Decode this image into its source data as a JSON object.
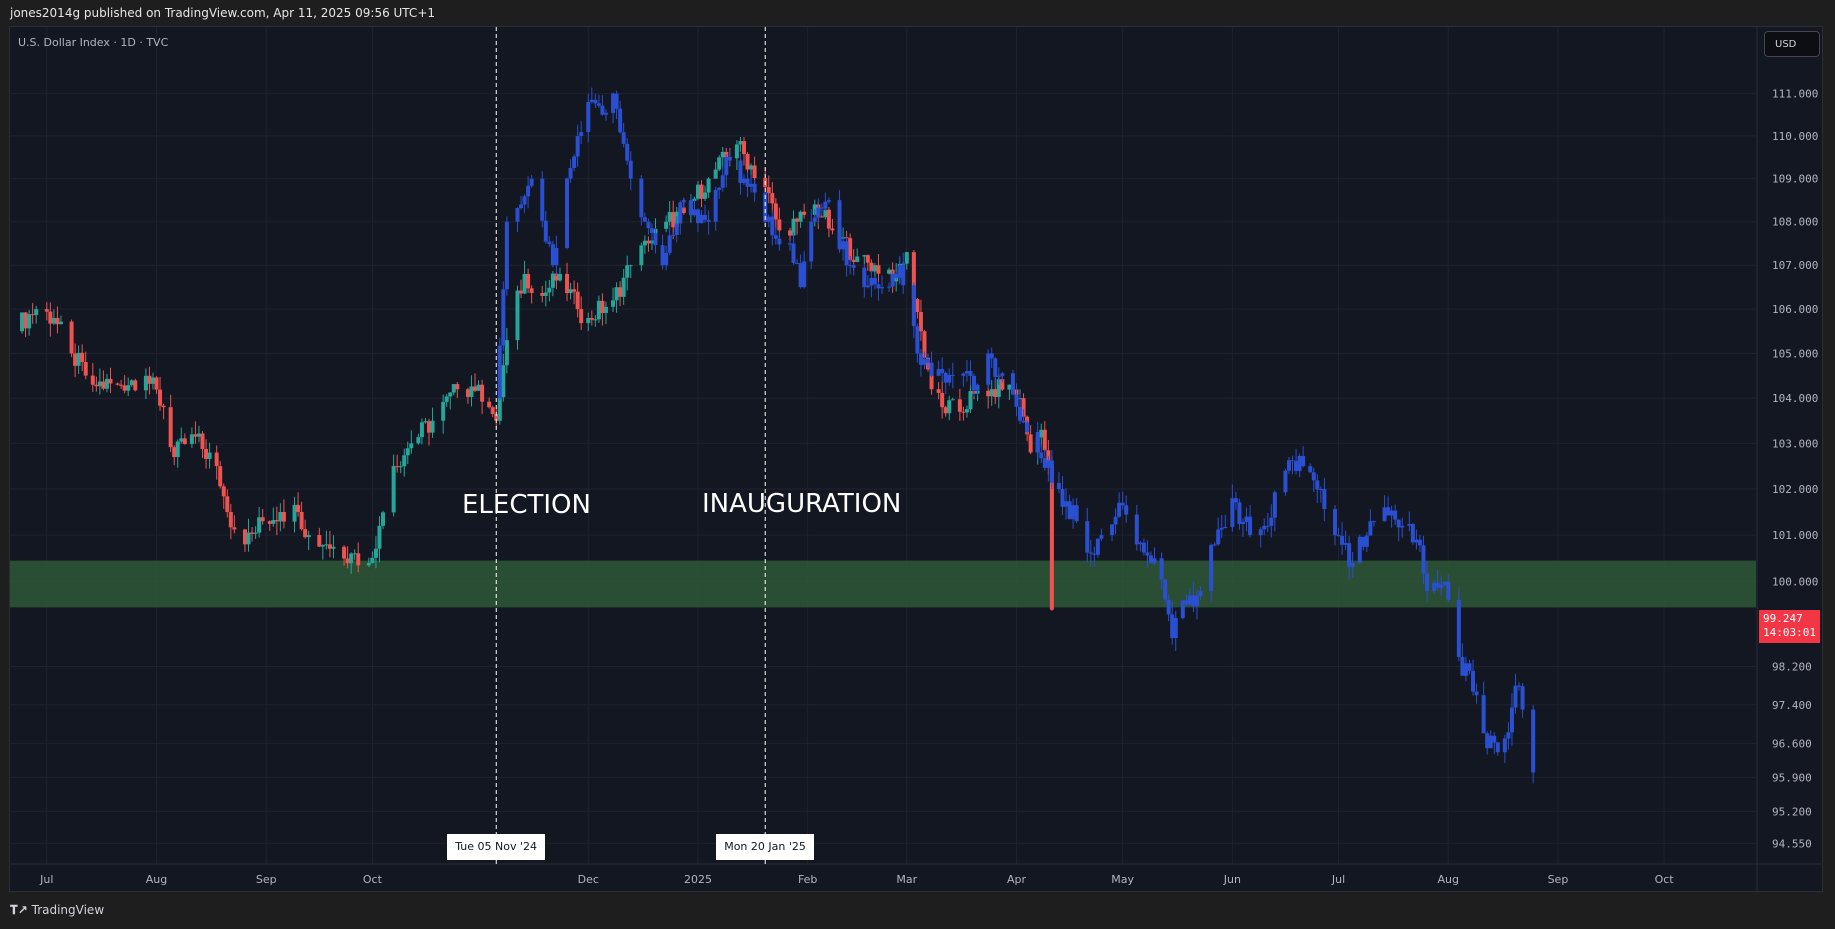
{
  "header": {
    "published": "jones2014g published on TradingView.com, Apr 11, 2025 09:56 UTC+1"
  },
  "legend": {
    "symbol": "U.S. Dollar Index · 1D · TVC"
  },
  "currency_button": "USD",
  "footer": {
    "brand": "TradingView",
    "logo_icon": "tradingview-logo-icon"
  },
  "chart_data": {
    "type": "candlestick",
    "y_scale": "log",
    "ylim": [
      94.2,
      111.5
    ],
    "y_ticks": [
      "111.000",
      "110.000",
      "109.000",
      "108.000",
      "107.000",
      "106.000",
      "105.000",
      "104.000",
      "103.000",
      "102.000",
      "101.000",
      "100.000",
      "98.200",
      "97.400",
      "96.600",
      "95.900",
      "95.200",
      "94.550"
    ],
    "x_ticks": [
      {
        "label": "Jul",
        "date": "2024-07-01"
      },
      {
        "label": "Aug",
        "date": "2024-08-01"
      },
      {
        "label": "Sep",
        "date": "2024-09-01"
      },
      {
        "label": "Oct",
        "date": "2024-10-01"
      },
      {
        "label": "Dec",
        "date": "2024-12-01"
      },
      {
        "label": "2025",
        "date": "2025-01-01"
      },
      {
        "label": "Feb",
        "date": "2025-02-01"
      },
      {
        "label": "Mar",
        "date": "2025-03-01"
      },
      {
        "label": "Apr",
        "date": "2025-04-01"
      },
      {
        "label": "May",
        "date": "2025-05-01"
      },
      {
        "label": "Jun",
        "date": "2025-06-01"
      },
      {
        "label": "Jul",
        "date": "2025-07-01"
      },
      {
        "label": "Aug",
        "date": "2025-08-01"
      },
      {
        "label": "Sep",
        "date": "2025-09-01"
      },
      {
        "label": "Oct",
        "date": "2025-10-01"
      }
    ],
    "grid": true,
    "colors": {
      "up": "#26a69a",
      "down": "#ef5350",
      "projection": "#2a4fd1",
      "zone": "#2e5436",
      "background": "#131722",
      "last_price": "#f23645"
    },
    "series": [
      {
        "kind": "candles",
        "points": [
          [
            "2024-06-21",
            105.5
          ],
          [
            "2024-06-28",
            106
          ],
          [
            "2024-07-03",
            105.8
          ],
          [
            "2024-07-08",
            105
          ],
          [
            "2024-07-14",
            104.3
          ],
          [
            "2024-07-21",
            104.3
          ],
          [
            "2024-07-29",
            104.5
          ],
          [
            "2024-08-03",
            103.8
          ],
          [
            "2024-08-06",
            102.7
          ],
          [
            "2024-08-11",
            103.2
          ],
          [
            "2024-08-18",
            102.5
          ],
          [
            "2024-08-21",
            101.5
          ],
          [
            "2024-08-26",
            100.8
          ],
          [
            "2024-08-31",
            101.3
          ],
          [
            "2024-09-05",
            101.5
          ],
          [
            "2024-09-10",
            101.5
          ],
          [
            "2024-09-13",
            101
          ],
          [
            "2024-09-18",
            100.8
          ],
          [
            "2024-09-25",
            100.6
          ],
          [
            "2024-09-30",
            100.4
          ],
          [
            "2024-10-03",
            101.2
          ],
          [
            "2024-10-07",
            102.5
          ],
          [
            "2024-10-12",
            103
          ],
          [
            "2024-10-18",
            103.5
          ],
          [
            "2024-10-25",
            104.2
          ],
          [
            "2024-10-31",
            104.3
          ],
          [
            "2024-11-03",
            103.8
          ],
          [
            "2024-11-05",
            103.5
          ],
          [
            "2024-11-08",
            105.3
          ],
          [
            "2024-11-13",
            106.8
          ],
          [
            "2024-11-18",
            106.3
          ],
          [
            "2024-11-23",
            106.8
          ],
          [
            "2024-11-28",
            106
          ],
          [
            "2024-12-01",
            105.8
          ],
          [
            "2024-12-08",
            106.2
          ],
          [
            "2024-12-13",
            107
          ],
          [
            "2024-12-18",
            107.5
          ],
          [
            "2024-12-23",
            108
          ],
          [
            "2024-12-28",
            108.2
          ],
          [
            "2025-01-04",
            109
          ],
          [
            "2025-01-09",
            109.5
          ],
          [
            "2025-01-12",
            109.8
          ],
          [
            "2025-01-20",
            108.8
          ],
          [
            "2025-01-24",
            107.8
          ],
          [
            "2025-01-29",
            108
          ],
          [
            "2025-02-03",
            108.4
          ],
          [
            "2025-02-08",
            107.8
          ],
          [
            "2025-02-15",
            107.2
          ],
          [
            "2025-02-20",
            107
          ],
          [
            "2025-02-26",
            106.8
          ],
          [
            "2025-03-01",
            107.3
          ],
          [
            "2025-03-05",
            105.5
          ],
          [
            "2025-03-08",
            104.2
          ],
          [
            "2025-03-11",
            103.8
          ],
          [
            "2025-03-16",
            103.7
          ],
          [
            "2025-03-20",
            104.1
          ],
          [
            "2025-03-25",
            104.2
          ],
          [
            "2025-03-30",
            104.3
          ],
          [
            "2025-04-02",
            104
          ],
          [
            "2025-04-05",
            102.8
          ],
          [
            "2025-04-08",
            103.3
          ],
          [
            "2025-04-10",
            102.5
          ],
          [
            "2025-04-11",
            99.4
          ]
        ]
      },
      {
        "kind": "bars-pattern",
        "points": [
          [
            "2024-11-05",
            104
          ],
          [
            "2024-11-08",
            108
          ],
          [
            "2024-11-15",
            109
          ],
          [
            "2024-11-21",
            107
          ],
          [
            "2024-11-25",
            109
          ],
          [
            "2024-12-01",
            110.8
          ],
          [
            "2024-12-05",
            110.5
          ],
          [
            "2024-12-08",
            111
          ],
          [
            "2024-12-13",
            109
          ],
          [
            "2024-12-17",
            108
          ],
          [
            "2024-12-22",
            107
          ],
          [
            "2024-12-28",
            108.5
          ],
          [
            "2025-01-04",
            108
          ],
          [
            "2025-01-09",
            109.5
          ],
          [
            "2025-01-14",
            109
          ],
          [
            "2025-01-20",
            108
          ],
          [
            "2025-01-27",
            107.5
          ],
          [
            "2025-01-30",
            106.5
          ],
          [
            "2025-02-02",
            108
          ],
          [
            "2025-02-07",
            108.5
          ],
          [
            "2025-02-12",
            107
          ],
          [
            "2025-02-17",
            106.5
          ],
          [
            "2025-02-22",
            106.5
          ],
          [
            "2025-02-27",
            107
          ],
          [
            "2025-03-04",
            105
          ],
          [
            "2025-03-08",
            104.5
          ],
          [
            "2025-03-14",
            104.5
          ],
          [
            "2025-03-21",
            104.3
          ],
          [
            "2025-03-24",
            105
          ],
          [
            "2025-03-27",
            104.5
          ],
          [
            "2025-04-02",
            103.5
          ],
          [
            "2025-04-07",
            102.8
          ],
          [
            "2025-04-13",
            102
          ],
          [
            "2025-04-18",
            101.3
          ],
          [
            "2025-04-22",
            100.6
          ],
          [
            "2025-04-25",
            101
          ],
          [
            "2025-04-30",
            101.7
          ],
          [
            "2025-05-05",
            100.8
          ],
          [
            "2025-05-10",
            100.5
          ],
          [
            "2025-05-14",
            99.3
          ],
          [
            "2025-05-15",
            98.8
          ],
          [
            "2025-05-18",
            99.6
          ],
          [
            "2025-05-23",
            99.8
          ],
          [
            "2025-05-27",
            100.8
          ],
          [
            "2025-06-01",
            101.8
          ],
          [
            "2025-06-06",
            101
          ],
          [
            "2025-06-11",
            101.2
          ],
          [
            "2025-06-16",
            102.4
          ],
          [
            "2025-06-21",
            102.5
          ],
          [
            "2025-06-26",
            102
          ],
          [
            "2025-06-30",
            101
          ],
          [
            "2025-07-05",
            100.4
          ],
          [
            "2025-07-10",
            101.3
          ],
          [
            "2025-07-14",
            101.6
          ],
          [
            "2025-07-19",
            101.2
          ],
          [
            "2025-07-23",
            100.9
          ],
          [
            "2025-07-26",
            99.8
          ],
          [
            "2025-07-31",
            100
          ],
          [
            "2025-08-04",
            98.4
          ],
          [
            "2025-08-09",
            97.6
          ],
          [
            "2025-08-12",
            96.5
          ],
          [
            "2025-08-17",
            96.7
          ],
          [
            "2025-08-20",
            97.8
          ],
          [
            "2025-08-22",
            97.3
          ],
          [
            "2025-08-25",
            96
          ]
        ]
      }
    ],
    "zone": {
      "from": 99.45,
      "to": 100.45
    },
    "events": [
      {
        "label": "ELECTION",
        "date": "2024-11-05",
        "time_label": "Tue 05 Nov '24"
      },
      {
        "label": "INAUGURATION",
        "date": "2025-01-20",
        "time_label": "Mon 20 Jan '25"
      }
    ],
    "last_price": {
      "value": "99.247",
      "countdown": "14:03:01"
    }
  }
}
